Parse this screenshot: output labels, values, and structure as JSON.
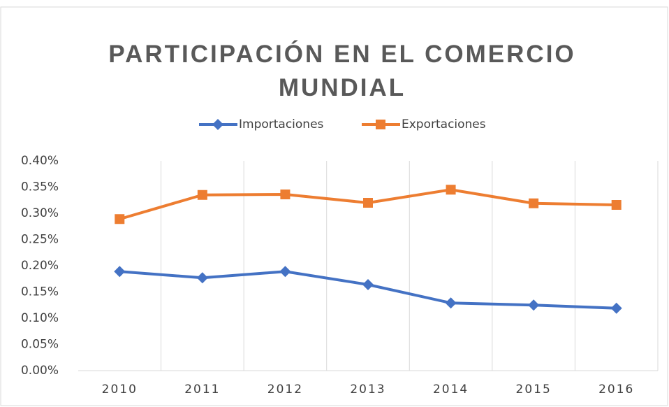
{
  "chart_data": {
    "type": "line",
    "title": "PARTICIPACIÓN EN EL COMERCIO MUNDIAL",
    "categories": [
      "2010",
      "2011",
      "2012",
      "2013",
      "2014",
      "2015",
      "2016"
    ],
    "series": [
      {
        "name": "Importaciones",
        "color": "#4472c4",
        "values": [
          0.189,
          0.177,
          0.189,
          0.164,
          0.129,
          0.125,
          0.119
        ]
      },
      {
        "name": "Exportaciones",
        "color": "#ed7d31",
        "values": [
          0.289,
          0.335,
          0.336,
          0.32,
          0.345,
          0.319,
          0.316
        ]
      }
    ],
    "ylim": [
      0,
      0.4
    ],
    "yticks": [
      {
        "value": 0,
        "label": "0.00%"
      },
      {
        "value": 0.05,
        "label": "0.05%"
      },
      {
        "value": 0.1,
        "label": "0.10%"
      },
      {
        "value": 0.15,
        "label": "0.15%"
      },
      {
        "value": 0.2,
        "label": "0.20%"
      },
      {
        "value": 0.25,
        "label": "0.25%"
      },
      {
        "value": 0.3,
        "label": "0.30%"
      },
      {
        "value": 0.35,
        "label": "0.35%"
      },
      {
        "value": 0.4,
        "label": "0.40%"
      }
    ],
    "legend": "top",
    "grid": "x"
  }
}
